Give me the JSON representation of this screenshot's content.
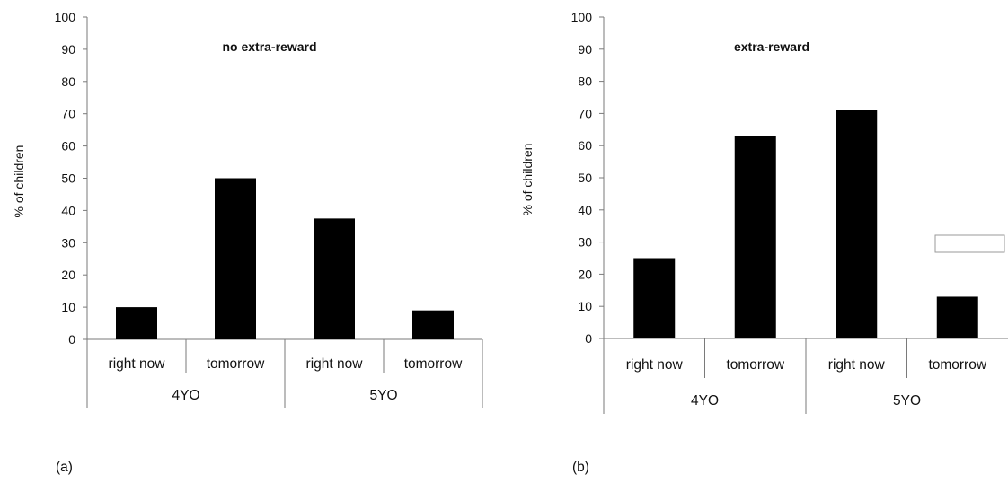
{
  "chart_data": [
    {
      "type": "bar",
      "panel_label": "(a)",
      "title": "no extra-reward",
      "ylabel": "% of children",
      "ylim": [
        0,
        100
      ],
      "yticks": [
        0,
        10,
        20,
        30,
        40,
        50,
        60,
        70,
        80,
        90,
        100
      ],
      "categories": [
        "right now",
        "tomorrow",
        "right now",
        "tomorrow"
      ],
      "groups": [
        {
          "label": "4YO",
          "categories": [
            "right now",
            "tomorrow"
          ]
        },
        {
          "label": "5YO",
          "categories": [
            "right now",
            "tomorrow"
          ]
        }
      ],
      "values": [
        10,
        50,
        37.5,
        9
      ],
      "bar_color": "#000000",
      "grid": false,
      "legend": false
    },
    {
      "type": "bar",
      "panel_label": "(b)",
      "title": "extra-reward",
      "ylabel": "% of  children",
      "ylim": [
        0,
        100
      ],
      "yticks": [
        0,
        10,
        20,
        30,
        40,
        50,
        60,
        70,
        80,
        90,
        100
      ],
      "categories": [
        "right now",
        "tomorrow",
        "right now",
        "tomorrow"
      ],
      "groups": [
        {
          "label": "4YO",
          "categories": [
            "right now",
            "tomorrow"
          ]
        },
        {
          "label": "5YO",
          "categories": [
            "right now",
            "tomorrow"
          ]
        }
      ],
      "values": [
        25,
        63,
        71,
        13
      ],
      "bar_color": "#000000",
      "grid": false,
      "legend": false
    }
  ]
}
